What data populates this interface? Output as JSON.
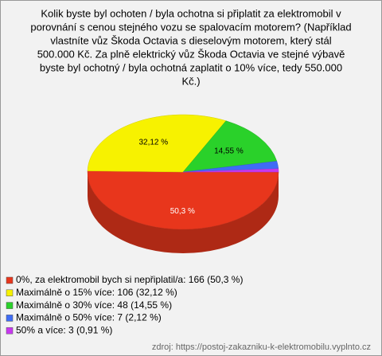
{
  "chart_data": {
    "type": "pie3d",
    "title": [
      "Kolik byste byl ochoten / byla ochotna si připlatit za elektromobil v",
      "porovnání s cenou stejného vozu se spalovacím motorem? (Například",
      "vlastníte vůz Škoda Octavia s dieselovým motorem, který stál",
      "500.000 Kč. Za plně elektrický vůz Škoda Octavia ve stejné výbavě",
      "byste byl ochotný / byla ochotná zaplatit o 10% více, tedy 550.000",
      "Kč.)"
    ],
    "categories": [
      "0%, za elektromobil bych si nepřiplatil/a: 166 (50,3 %)",
      "Maximálně o 15% více: 106 (32,12 %)",
      "Maximálně o 30% více: 48 (14,55 %)",
      "Maximálně o 50% více: 7 (2,12 %)",
      "50% a více: 3 (0,91 %)"
    ],
    "values": [
      166,
      106,
      48,
      7,
      3
    ],
    "value_labels": [
      "50,3 %",
      "32,12 %",
      "14,55 %",
      null,
      null
    ],
    "colors": [
      "#e8361c",
      "#f7f200",
      "#2ad12a",
      "#3f6cf5",
      "#c838f0"
    ],
    "source": "zdroj: https://postoj-zakazniku-k-elektromobilu.vyplnto.cz"
  }
}
